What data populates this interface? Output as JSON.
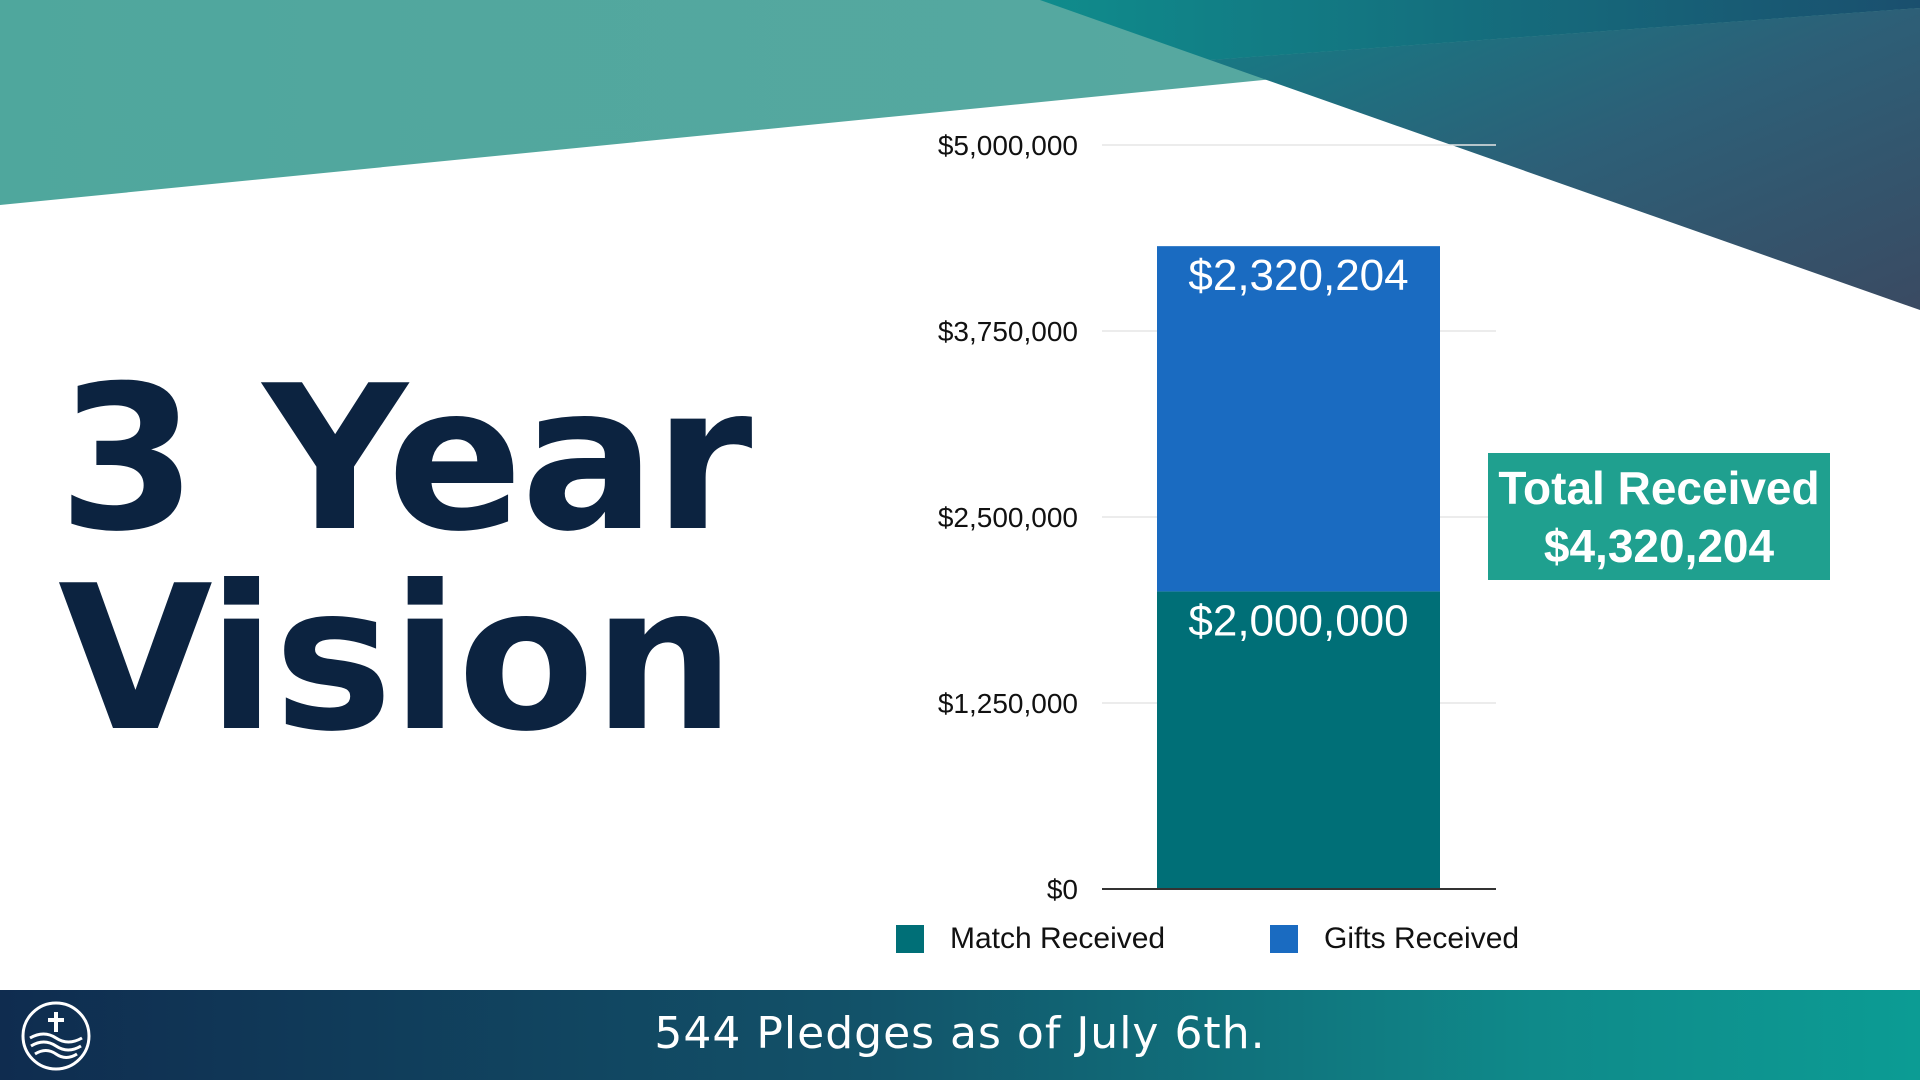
{
  "slide": {
    "title_line1": "3 Year",
    "title_line2": "Vision",
    "total_label": "Total Received",
    "total_value": "$4,320,204",
    "footer": "544 Pledges as of July 6th."
  },
  "colors": {
    "title": "#0c2340",
    "match": "#006f77",
    "gifts": "#1a6bc1",
    "total_box": "#1fa08f",
    "grid": "#e6e6e6"
  },
  "chart_data": {
    "type": "bar",
    "stacked": true,
    "categories": [
      ""
    ],
    "series": [
      {
        "name": "Match Received",
        "values": [
          2000000
        ],
        "label": "$2,000,000"
      },
      {
        "name": "Gifts Received",
        "values": [
          2320204
        ],
        "label": "$2,320,204"
      }
    ],
    "ylim": [
      0,
      5000000
    ],
    "yticks": [
      {
        "value": 0,
        "label": "$0"
      },
      {
        "value": 1250000,
        "label": "$1,250,000"
      },
      {
        "value": 2500000,
        "label": "$2,500,000"
      },
      {
        "value": 3750000,
        "label": "$3,750,000"
      },
      {
        "value": 5000000,
        "label": "$5,000,000"
      }
    ],
    "grid": true,
    "legend": "bottom"
  }
}
